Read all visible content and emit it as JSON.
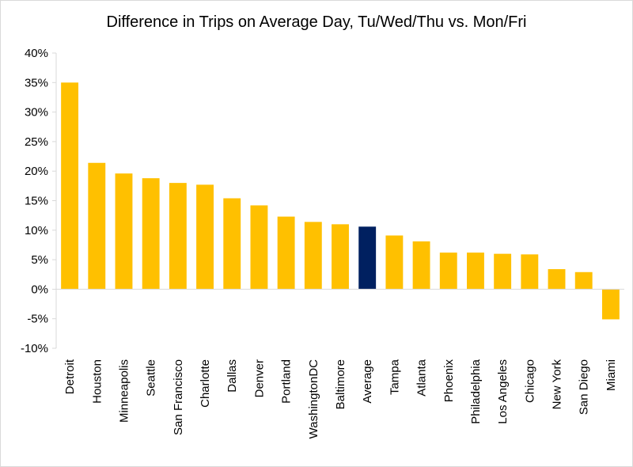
{
  "chart_data": {
    "type": "bar",
    "title": "Difference in Trips on Average Day, Tu/Wed/Thu vs. Mon/Fri",
    "xlabel": "",
    "ylabel": "",
    "categories": [
      "Detroit",
      "Houston",
      "Minneapolis",
      "Seattle",
      "San Francisco",
      "Charlotte",
      "Dallas",
      "Denver",
      "Portland",
      "WashingtonDC",
      "Baltimore",
      "Average",
      "Tampa",
      "Atlanta",
      "Phoenix",
      "Philadelphia",
      "Los Angeles",
      "Chicago",
      "New York",
      "San Diego",
      "Miami"
    ],
    "values": [
      35.0,
      21.4,
      19.6,
      18.8,
      18.0,
      17.7,
      15.4,
      14.2,
      12.3,
      11.4,
      11.0,
      10.6,
      9.1,
      8.1,
      6.2,
      6.2,
      6.0,
      5.9,
      3.4,
      2.9,
      -5.1
    ],
    "ylim": [
      -10,
      40
    ],
    "ytick_step": 5,
    "ytick_format": "percent",
    "grid": false,
    "legend": "none",
    "colors": {
      "default_bar": "#FFC000",
      "highlight_bar": "#002060",
      "axis": "#d9d9d9"
    },
    "highlight_category": "Average"
  }
}
